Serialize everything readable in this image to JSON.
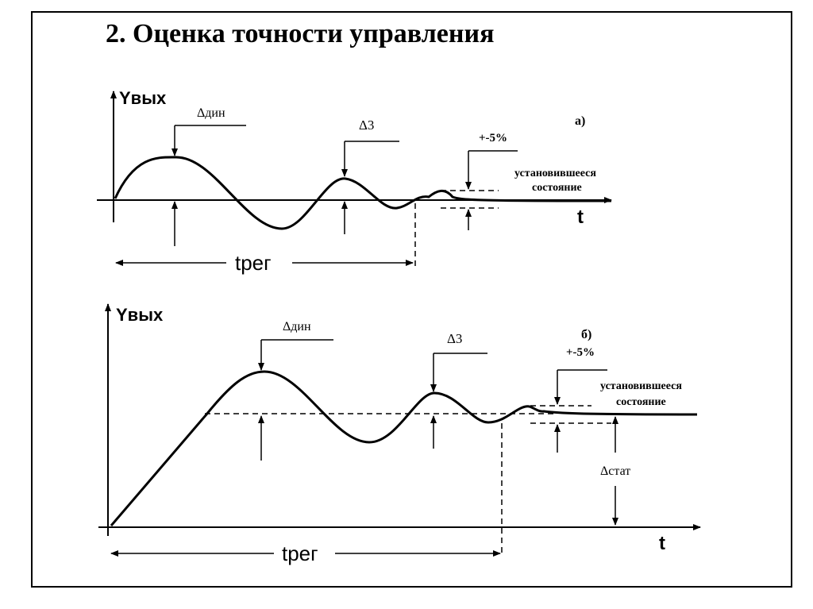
{
  "title": "2. Оценка точности управления",
  "diagrams": [
    {
      "tag": "а)",
      "y_axis_label": "Yвых",
      "x_axis_label": "t",
      "delta_dyn_label": "Δдин",
      "delta3_label": "Δ3",
      "tolerance_label": "+-5%",
      "steady_state_label": [
        "установившееся",
        "состояние"
      ],
      "t_reg_label": "tрег"
    },
    {
      "tag": "б)",
      "y_axis_label": "Yвых",
      "x_axis_label": "t",
      "delta_dyn_label": "Δдин",
      "delta3_label": "Δ3",
      "tolerance_label": "+-5%",
      "steady_state_label": [
        "установившееся",
        "состояние"
      ],
      "t_reg_label": "tрег",
      "delta_stat_label": "Δстат"
    }
  ]
}
